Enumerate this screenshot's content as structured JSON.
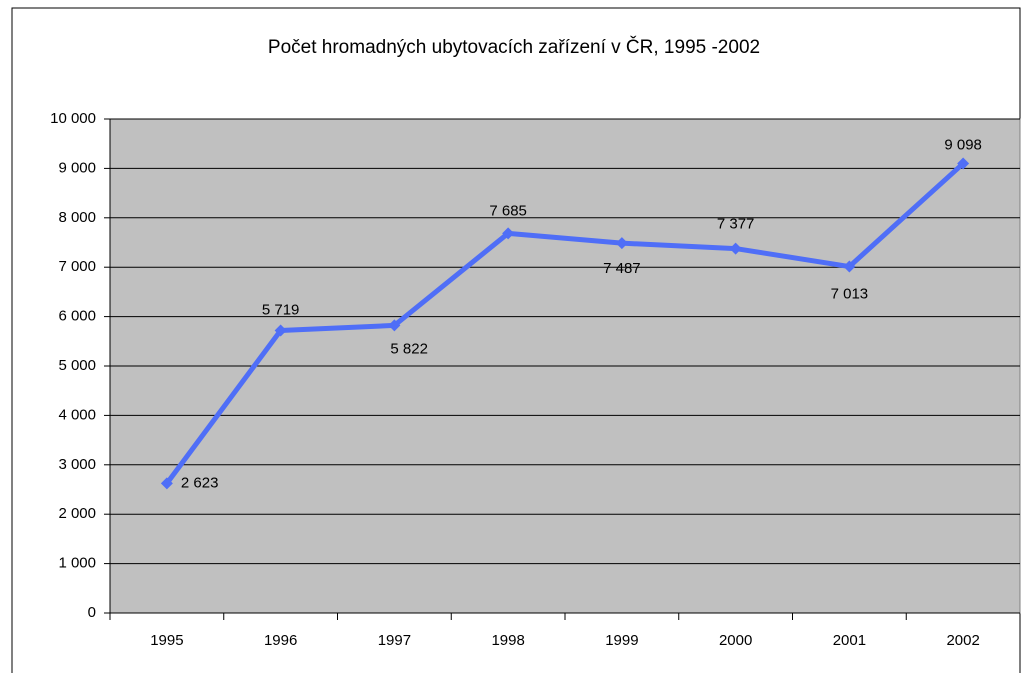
{
  "chart_data": {
    "type": "line",
    "title": "Počet hromadných ubytovacích zařízení v ČR, 1995 -2002",
    "categories": [
      "1995",
      "1996",
      "1997",
      "1998",
      "1999",
      "2000",
      "2001",
      "2002"
    ],
    "series": [
      {
        "name": "Počet",
        "color": "#4f6ef7",
        "values": [
          2623,
          5719,
          5822,
          7685,
          7487,
          7377,
          7013,
          9098
        ],
        "value_labels": [
          "2 623",
          "5 719",
          "5 822",
          "7 685",
          "7 487",
          "7 377",
          "7 013",
          "9 098"
        ]
      }
    ],
    "ylim": [
      0,
      10000
    ],
    "yticks": [
      0,
      {
        "value": 1000,
        "label": "1 000"
      },
      {
        "value": 2000,
        "label": "2 000"
      },
      {
        "value": 3000,
        "label": "3 000"
      },
      {
        "value": 4000,
        "label": "4 000"
      },
      {
        "value": 5000,
        "label": "5 000"
      },
      {
        "value": 6000,
        "label": "6 000"
      },
      {
        "value": 7000,
        "label": "7 000"
      },
      {
        "value": 8000,
        "label": "8 000"
      },
      {
        "value": 9000,
        "label": "9 000"
      },
      {
        "value": 10000,
        "label": "10 000"
      }
    ],
    "grid": true,
    "plot_background": "#c0c0c0"
  }
}
